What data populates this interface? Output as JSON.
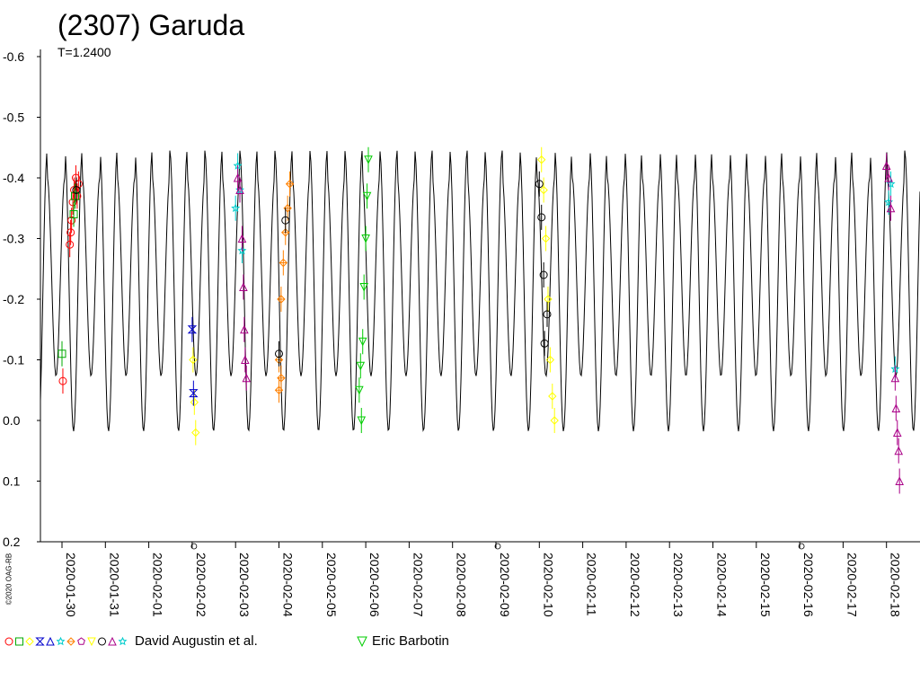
{
  "chart_data": {
    "type": "line",
    "title": "(2307) Garuda",
    "subtitle": "T=1.2400",
    "copyright": "©2020 OAG-RB",
    "y_ticks": [
      "-0.6",
      "-0.5",
      "-0.4",
      "-0.3",
      "-0.2",
      "-0.1",
      "0.0",
      "0.1",
      "0.2"
    ],
    "y_tick_values": [
      -0.6,
      -0.5,
      -0.4,
      -0.3,
      -0.2,
      -0.1,
      0.0,
      0.1,
      0.2
    ],
    "ylim": [
      -0.6,
      0.2
    ],
    "y_inverted": true,
    "x_ticks": [
      "2020-01-30",
      "2020-01-31",
      "2020-02-01",
      "2020-02-02",
      "2020-02-03",
      "2020-02-04",
      "2020-02-05",
      "2020-02-06",
      "2020-02-07",
      "2020-02-08",
      "2020-02-09",
      "2020-02-10",
      "2020-02-11",
      "2020-02-12",
      "2020-02-13",
      "2020-02-14",
      "2020-02-15",
      "2020-02-16",
      "2020-02-17",
      "2020-02-18"
    ],
    "xlim_days": [
      "2020-01-29.45",
      "2020-02-18.75"
    ],
    "model_curve": {
      "color": "#000000",
      "primary_max": -0.445,
      "secondary_max": -0.4,
      "primary_min": 0.018,
      "secondary_min": -0.073
    },
    "series": [
      {
        "name": "David Augustin et al.",
        "color": "#ff0000",
        "marker": "circle",
        "points": [
          [
            "2020-01-30.02",
            -0.065
          ],
          [
            "2020-01-30.18",
            -0.29
          ],
          [
            "2020-01-30.20",
            -0.31
          ],
          [
            "2020-01-30.22",
            -0.33
          ],
          [
            "2020-01-30.25",
            -0.36
          ],
          [
            "2020-01-30.28",
            -0.38
          ],
          [
            "2020-01-30.32",
            -0.4
          ],
          [
            "2020-01-30.35",
            -0.37
          ],
          [
            "2020-01-30.38",
            -0.39
          ]
        ]
      },
      {
        "name": "",
        "color": "#00aa00",
        "marker": "square",
        "points": [
          [
            "2020-01-30.00",
            -0.11
          ],
          [
            "2020-01-30.27",
            -0.34
          ],
          [
            "2020-01-30.30",
            -0.37
          ]
        ]
      },
      {
        "name": "",
        "color": "#ffff00",
        "marker": "diamond",
        "points": [
          [
            "2020-02-02.02",
            -0.1
          ],
          [
            "2020-02-02.05",
            -0.03
          ],
          [
            "2020-02-02.08",
            0.02
          ],
          [
            "2020-02-10.05",
            -0.43
          ],
          [
            "2020-02-10.10",
            -0.38
          ],
          [
            "2020-02-10.15",
            -0.3
          ],
          [
            "2020-02-10.20",
            -0.2
          ],
          [
            "2020-02-10.25",
            -0.1
          ],
          [
            "2020-02-10.30",
            -0.04
          ],
          [
            "2020-02-10.35",
            0.0
          ]
        ]
      },
      {
        "name": "",
        "color": "#0000cc",
        "marker": "hourglass",
        "points": [
          [
            "2020-02-02.00",
            -0.15
          ],
          [
            "2020-02-02.03",
            -0.045
          ]
        ]
      },
      {
        "name": "",
        "color": "#00cccc",
        "marker": "star",
        "points": [
          [
            "2020-02-03.00",
            -0.35
          ],
          [
            "2020-02-03.05",
            -0.42
          ],
          [
            "2020-02-03.10",
            -0.38
          ],
          [
            "2020-02-03.15",
            -0.28
          ],
          [
            "2020-02-18.05",
            -0.36
          ],
          [
            "2020-02-18.10",
            -0.39
          ],
          [
            "2020-02-18.20",
            -0.085
          ]
        ]
      },
      {
        "name": "",
        "color": "#ff8000",
        "marker": "cross-diamond",
        "points": [
          [
            "2020-02-04.00",
            -0.1
          ],
          [
            "2020-02-04.05",
            -0.2
          ],
          [
            "2020-02-04.10",
            -0.26
          ],
          [
            "2020-02-04.15",
            -0.31
          ],
          [
            "2020-02-04.20",
            -0.35
          ],
          [
            "2020-02-04.25",
            -0.39
          ],
          [
            "2020-02-04.05",
            -0.07
          ],
          [
            "2020-02-04.00",
            -0.05
          ]
        ]
      },
      {
        "name": "",
        "color": "#000000",
        "marker": "circle",
        "points": [
          [
            "2020-02-10.00",
            -0.39
          ],
          [
            "2020-02-10.05",
            -0.335
          ],
          [
            "2020-02-10.10",
            -0.24
          ],
          [
            "2020-02-10.18",
            -0.175
          ],
          [
            "2020-02-10.12",
            -0.127
          ],
          [
            "2020-02-04.15",
            -0.33
          ],
          [
            "2020-02-04.00",
            -0.11
          ],
          [
            "2020-01-30.33",
            -0.38
          ]
        ]
      },
      {
        "name": "",
        "color": "#aa0088",
        "marker": "triangle",
        "points": [
          [
            "2020-02-03.05",
            -0.4
          ],
          [
            "2020-02-03.10",
            -0.38
          ],
          [
            "2020-02-03.15",
            -0.3
          ],
          [
            "2020-02-03.18",
            -0.22
          ],
          [
            "2020-02-03.20",
            -0.15
          ],
          [
            "2020-02-03.22",
            -0.1
          ],
          [
            "2020-02-03.25",
            -0.07
          ],
          [
            "2020-02-18.00",
            -0.42
          ],
          [
            "2020-02-18.05",
            -0.4
          ],
          [
            "2020-02-18.10",
            -0.35
          ],
          [
            "2020-02-18.20",
            -0.07
          ],
          [
            "2020-02-18.22",
            -0.02
          ],
          [
            "2020-02-18.25",
            0.02
          ],
          [
            "2020-02-18.28",
            0.05
          ],
          [
            "2020-02-18.30",
            0.1
          ]
        ]
      },
      {
        "name": "Eric Barbotin",
        "color": "#00cc00",
        "marker": "triangle-down",
        "points": [
          [
            "2020-02-05.85",
            -0.05
          ],
          [
            "2020-02-05.88",
            -0.09
          ],
          [
            "2020-02-05.90",
            0.0
          ],
          [
            "2020-02-05.93",
            -0.13
          ],
          [
            "2020-02-05.96",
            -0.22
          ],
          [
            "2020-02-06.00",
            -0.3
          ],
          [
            "2020-02-06.03",
            -0.37
          ],
          [
            "2020-02-06.06",
            -0.43
          ]
        ]
      }
    ],
    "legend": {
      "placement": "bottom",
      "entries": [
        {
          "label": "David Augustin et al.",
          "symbols": [
            "circle:#ff0000",
            "square:#00aa00",
            "diamond:#ffff00",
            "hourglass:#0000cc",
            "triangle:#0000cc",
            "star:#00cccc",
            "cross-diamond:#ff8000",
            "pentagon:#aa0088",
            "triangle-down:#ffff00",
            "circle:#000000",
            "triangle:#aa0088",
            "star:#00cccc"
          ]
        },
        {
          "label": "Eric Barbotin",
          "symbols": [
            "triangle-down:#00cc00"
          ]
        }
      ]
    },
    "grid": false
  }
}
